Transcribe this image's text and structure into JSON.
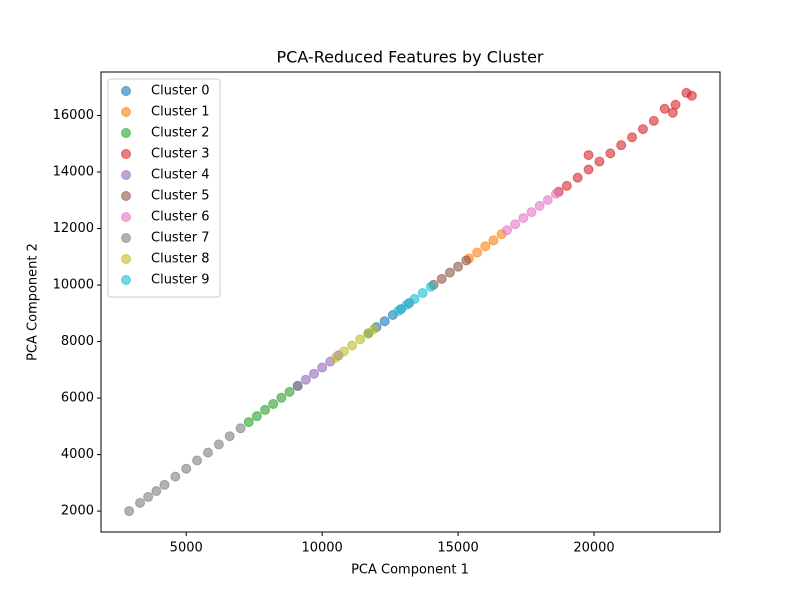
{
  "chart_data": {
    "type": "scatter",
    "title": "PCA-Reduced Features by Cluster",
    "x_label": "PCA Component 1",
    "y_label": "PCA Component 2",
    "xlim": [
      1865,
      24635
    ],
    "ylim": [
      1260,
      17540
    ],
    "xticks": [
      5000,
      10000,
      15000,
      20000
    ],
    "yticks": [
      2000,
      4000,
      6000,
      8000,
      10000,
      12000,
      14000,
      16000
    ],
    "legend": "upper-left",
    "series": [
      {
        "name": "Cluster 0",
        "color": "#1f77b4",
        "x": [
          11700,
          12000,
          12300,
          12600,
          12900,
          13200
        ],
        "values": [
          8290,
          8510,
          8720,
          8940,
          9150,
          9360
        ]
      },
      {
        "name": "Cluster 1",
        "color": "#ff7f0e",
        "x": [
          15400,
          15700,
          16000,
          16300,
          16600
        ],
        "values": [
          10940,
          11150,
          11370,
          11580,
          11800
        ]
      },
      {
        "name": "Cluster 2",
        "color": "#2ca02c",
        "x": [
          7300,
          7600,
          7900,
          8200,
          8500,
          8800,
          9100
        ],
        "values": [
          5150,
          5360,
          5580,
          5790,
          6010,
          6220,
          6430
        ]
      },
      {
        "name": "Cluster 3",
        "color": "#d62728",
        "x": [
          18700,
          19000,
          19400,
          19800,
          19800,
          20200,
          20600,
          21000,
          21400,
          21800,
          22200,
          22600,
          22900,
          23000,
          23400,
          23600
        ],
        "values": [
          13300,
          13510,
          13800,
          14090,
          14600,
          14370,
          14660,
          14950,
          15230,
          15520,
          15810,
          16240,
          16100,
          16380,
          16800,
          16700
        ]
      },
      {
        "name": "Cluster 4",
        "color": "#9467bd",
        "x": [
          9100,
          9400,
          9700,
          10000,
          10300,
          10600
        ],
        "values": [
          6430,
          6650,
          6860,
          7080,
          7290,
          7510
        ]
      },
      {
        "name": "Cluster 5",
        "color": "#8c564b",
        "x": [
          14100,
          14400,
          14700,
          15000,
          15300
        ],
        "values": [
          10010,
          10220,
          10440,
          10650,
          10870
        ]
      },
      {
        "name": "Cluster 6",
        "color": "#e377c2",
        "x": [
          16800,
          17100,
          17400,
          17700,
          18000,
          18300,
          18600
        ],
        "values": [
          11940,
          12150,
          12370,
          12580,
          12800,
          13010,
          13230
        ]
      },
      {
        "name": "Cluster 7",
        "color": "#7f7f7f",
        "x": [
          2900,
          3300,
          3600,
          3900,
          4200,
          4600,
          5000,
          5400,
          5800,
          6200,
          6600,
          7000
        ],
        "values": [
          2000,
          2290,
          2500,
          2710,
          2930,
          3220,
          3500,
          3790,
          4070,
          4360,
          4650,
          4930
        ]
      },
      {
        "name": "Cluster 8",
        "color": "#bcbd22",
        "x": [
          10500,
          10800,
          11100,
          11400,
          11700,
          11900
        ],
        "values": [
          7430,
          7650,
          7860,
          8080,
          8290,
          8440
        ]
      },
      {
        "name": "Cluster 9",
        "color": "#17becf",
        "x": [
          12800,
          13100,
          13400,
          13700,
          14000
        ],
        "values": [
          9080,
          9290,
          9510,
          9720,
          9940
        ]
      }
    ]
  }
}
